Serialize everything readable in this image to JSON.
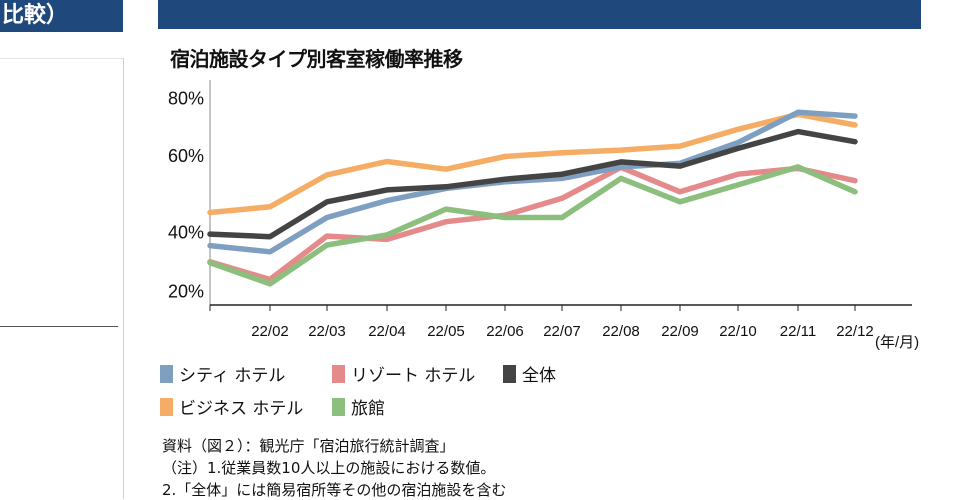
{
  "left_panel": {
    "header": "比較）"
  },
  "chart_data": {
    "type": "line",
    "title": "宿泊施設タイプ別客室稼働率推移",
    "categories": [
      "",
      "22/02",
      "22/03",
      "22/04",
      "22/05",
      "22/06",
      "22/07",
      "22/08",
      "22/09",
      "22/10",
      "22/11",
      "22/12"
    ],
    "x_unit": "(年/月)",
    "y_ticks": [
      "20%",
      "40%",
      "60%",
      "80%"
    ],
    "ylim": [
      15,
      86
    ],
    "grid": false,
    "legend_placement": "bottom",
    "series": [
      {
        "name": "シティ ホテル",
        "color": "#7f9fc1",
        "values": [
          35.3,
          33.2,
          43.7,
          48.1,
          51.3,
          53.0,
          53.9,
          56.9,
          57.8,
          64.3,
          74.8,
          73.5
        ]
      },
      {
        "name": "リゾート ホテル",
        "color": "#e58a8a",
        "values": [
          29.8,
          23.8,
          38.5,
          37.4,
          42.6,
          44.3,
          48.7,
          56.8,
          50.4,
          55.0,
          56.5,
          53.3
        ]
      },
      {
        "name": "全体",
        "color": "#444444",
        "values": [
          39.2,
          38.3,
          47.8,
          50.9,
          51.7,
          53.7,
          55.0,
          58.2,
          57.1,
          62.3,
          68.1,
          64.6
        ]
      },
      {
        "name": "ビジネス ホテル",
        "color": "#f5ad66",
        "values": [
          45.0,
          46.5,
          54.8,
          58.3,
          56.3,
          59.6,
          60.8,
          61.7,
          63.1,
          68.9,
          74.1,
          70.4
        ]
      },
      {
        "name": "旅館",
        "color": "#8cbf7e",
        "values": [
          29.5,
          22.3,
          35.5,
          38.9,
          45.9,
          43.7,
          43.7,
          53.9,
          47.8,
          52.2,
          56.9,
          50.4
        ]
      }
    ]
  },
  "notes": [
    "資料（図２）：観光庁「宿泊旅行統計調査」",
    "（注）1.従業員数10人以上の施設における数値。",
    "2.「全体」には簡易宿所等その他の宿泊施設を含む"
  ]
}
